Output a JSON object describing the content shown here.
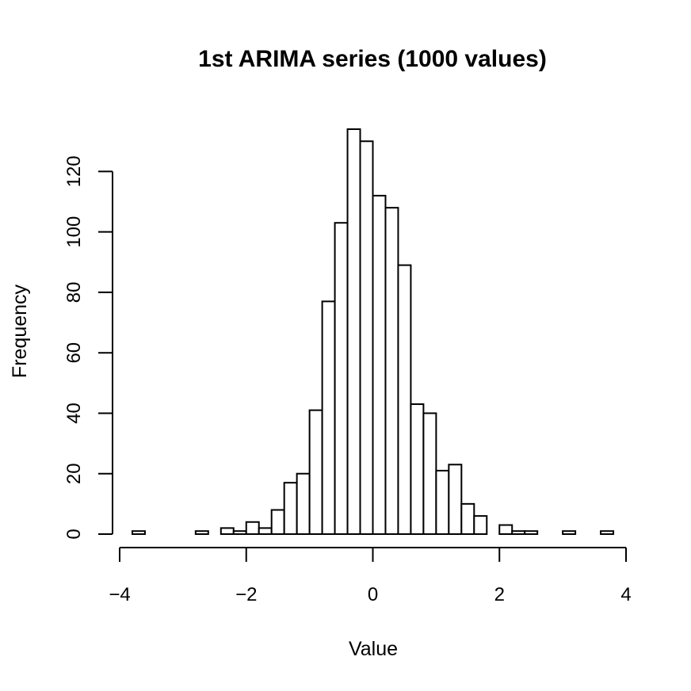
{
  "chart_data": {
    "type": "bar",
    "title": "1st ARIMA series (1000 values)",
    "xlabel": "Value",
    "ylabel": "Frequency",
    "bin_width": 0.2,
    "bins": [
      {
        "x0": -3.8,
        "x1": -3.6,
        "count": 1
      },
      {
        "x0": -3.6,
        "x1": -3.4,
        "count": 0
      },
      {
        "x0": -3.4,
        "x1": -3.2,
        "count": 0
      },
      {
        "x0": -3.2,
        "x1": -3.0,
        "count": 0
      },
      {
        "x0": -3.0,
        "x1": -2.8,
        "count": 0
      },
      {
        "x0": -2.8,
        "x1": -2.6,
        "count": 1
      },
      {
        "x0": -2.6,
        "x1": -2.4,
        "count": 0
      },
      {
        "x0": -2.4,
        "x1": -2.2,
        "count": 2
      },
      {
        "x0": -2.2,
        "x1": -2.0,
        "count": 1
      },
      {
        "x0": -2.0,
        "x1": -1.8,
        "count": 4
      },
      {
        "x0": -1.8,
        "x1": -1.6,
        "count": 2
      },
      {
        "x0": -1.6,
        "x1": -1.4,
        "count": 8
      },
      {
        "x0": -1.4,
        "x1": -1.2,
        "count": 17
      },
      {
        "x0": -1.2,
        "x1": -1.0,
        "count": 20
      },
      {
        "x0": -1.0,
        "x1": -0.8,
        "count": 41
      },
      {
        "x0": -0.8,
        "x1": -0.6,
        "count": 77
      },
      {
        "x0": -0.6,
        "x1": -0.4,
        "count": 103
      },
      {
        "x0": -0.4,
        "x1": -0.2,
        "count": 134
      },
      {
        "x0": -0.2,
        "x1": 0.0,
        "count": 130
      },
      {
        "x0": 0.0,
        "x1": 0.2,
        "count": 112
      },
      {
        "x0": 0.2,
        "x1": 0.4,
        "count": 108
      },
      {
        "x0": 0.4,
        "x1": 0.6,
        "count": 89
      },
      {
        "x0": 0.6,
        "x1": 0.8,
        "count": 43
      },
      {
        "x0": 0.8,
        "x1": 1.0,
        "count": 40
      },
      {
        "x0": 1.0,
        "x1": 1.2,
        "count": 21
      },
      {
        "x0": 1.2,
        "x1": 1.4,
        "count": 23
      },
      {
        "x0": 1.4,
        "x1": 1.6,
        "count": 10
      },
      {
        "x0": 1.6,
        "x1": 1.8,
        "count": 6
      },
      {
        "x0": 1.8,
        "x1": 2.0,
        "count": 0
      },
      {
        "x0": 2.0,
        "x1": 2.2,
        "count": 3
      },
      {
        "x0": 2.2,
        "x1": 2.4,
        "count": 1
      },
      {
        "x0": 2.4,
        "x1": 2.6,
        "count": 1
      },
      {
        "x0": 2.6,
        "x1": 2.8,
        "count": 0
      },
      {
        "x0": 2.8,
        "x1": 3.0,
        "count": 0
      },
      {
        "x0": 3.0,
        "x1": 3.2,
        "count": 1
      },
      {
        "x0": 3.2,
        "x1": 3.4,
        "count": 0
      },
      {
        "x0": 3.4,
        "x1": 3.6,
        "count": 0
      },
      {
        "x0": 3.6,
        "x1": 3.8,
        "count": 1
      }
    ],
    "xlim": [
      -4,
      4
    ],
    "ylim": [
      0,
      134
    ],
    "x_ticks": [
      -4,
      -2,
      0,
      2,
      4
    ],
    "x_tick_labels": [
      "−4",
      "−2",
      "0",
      "2",
      "4"
    ],
    "y_ticks": [
      0,
      20,
      40,
      60,
      80,
      100,
      120
    ],
    "y_tick_labels": [
      "0",
      "20",
      "40",
      "60",
      "80",
      "100",
      "120"
    ],
    "grid": false,
    "legend": "none"
  }
}
